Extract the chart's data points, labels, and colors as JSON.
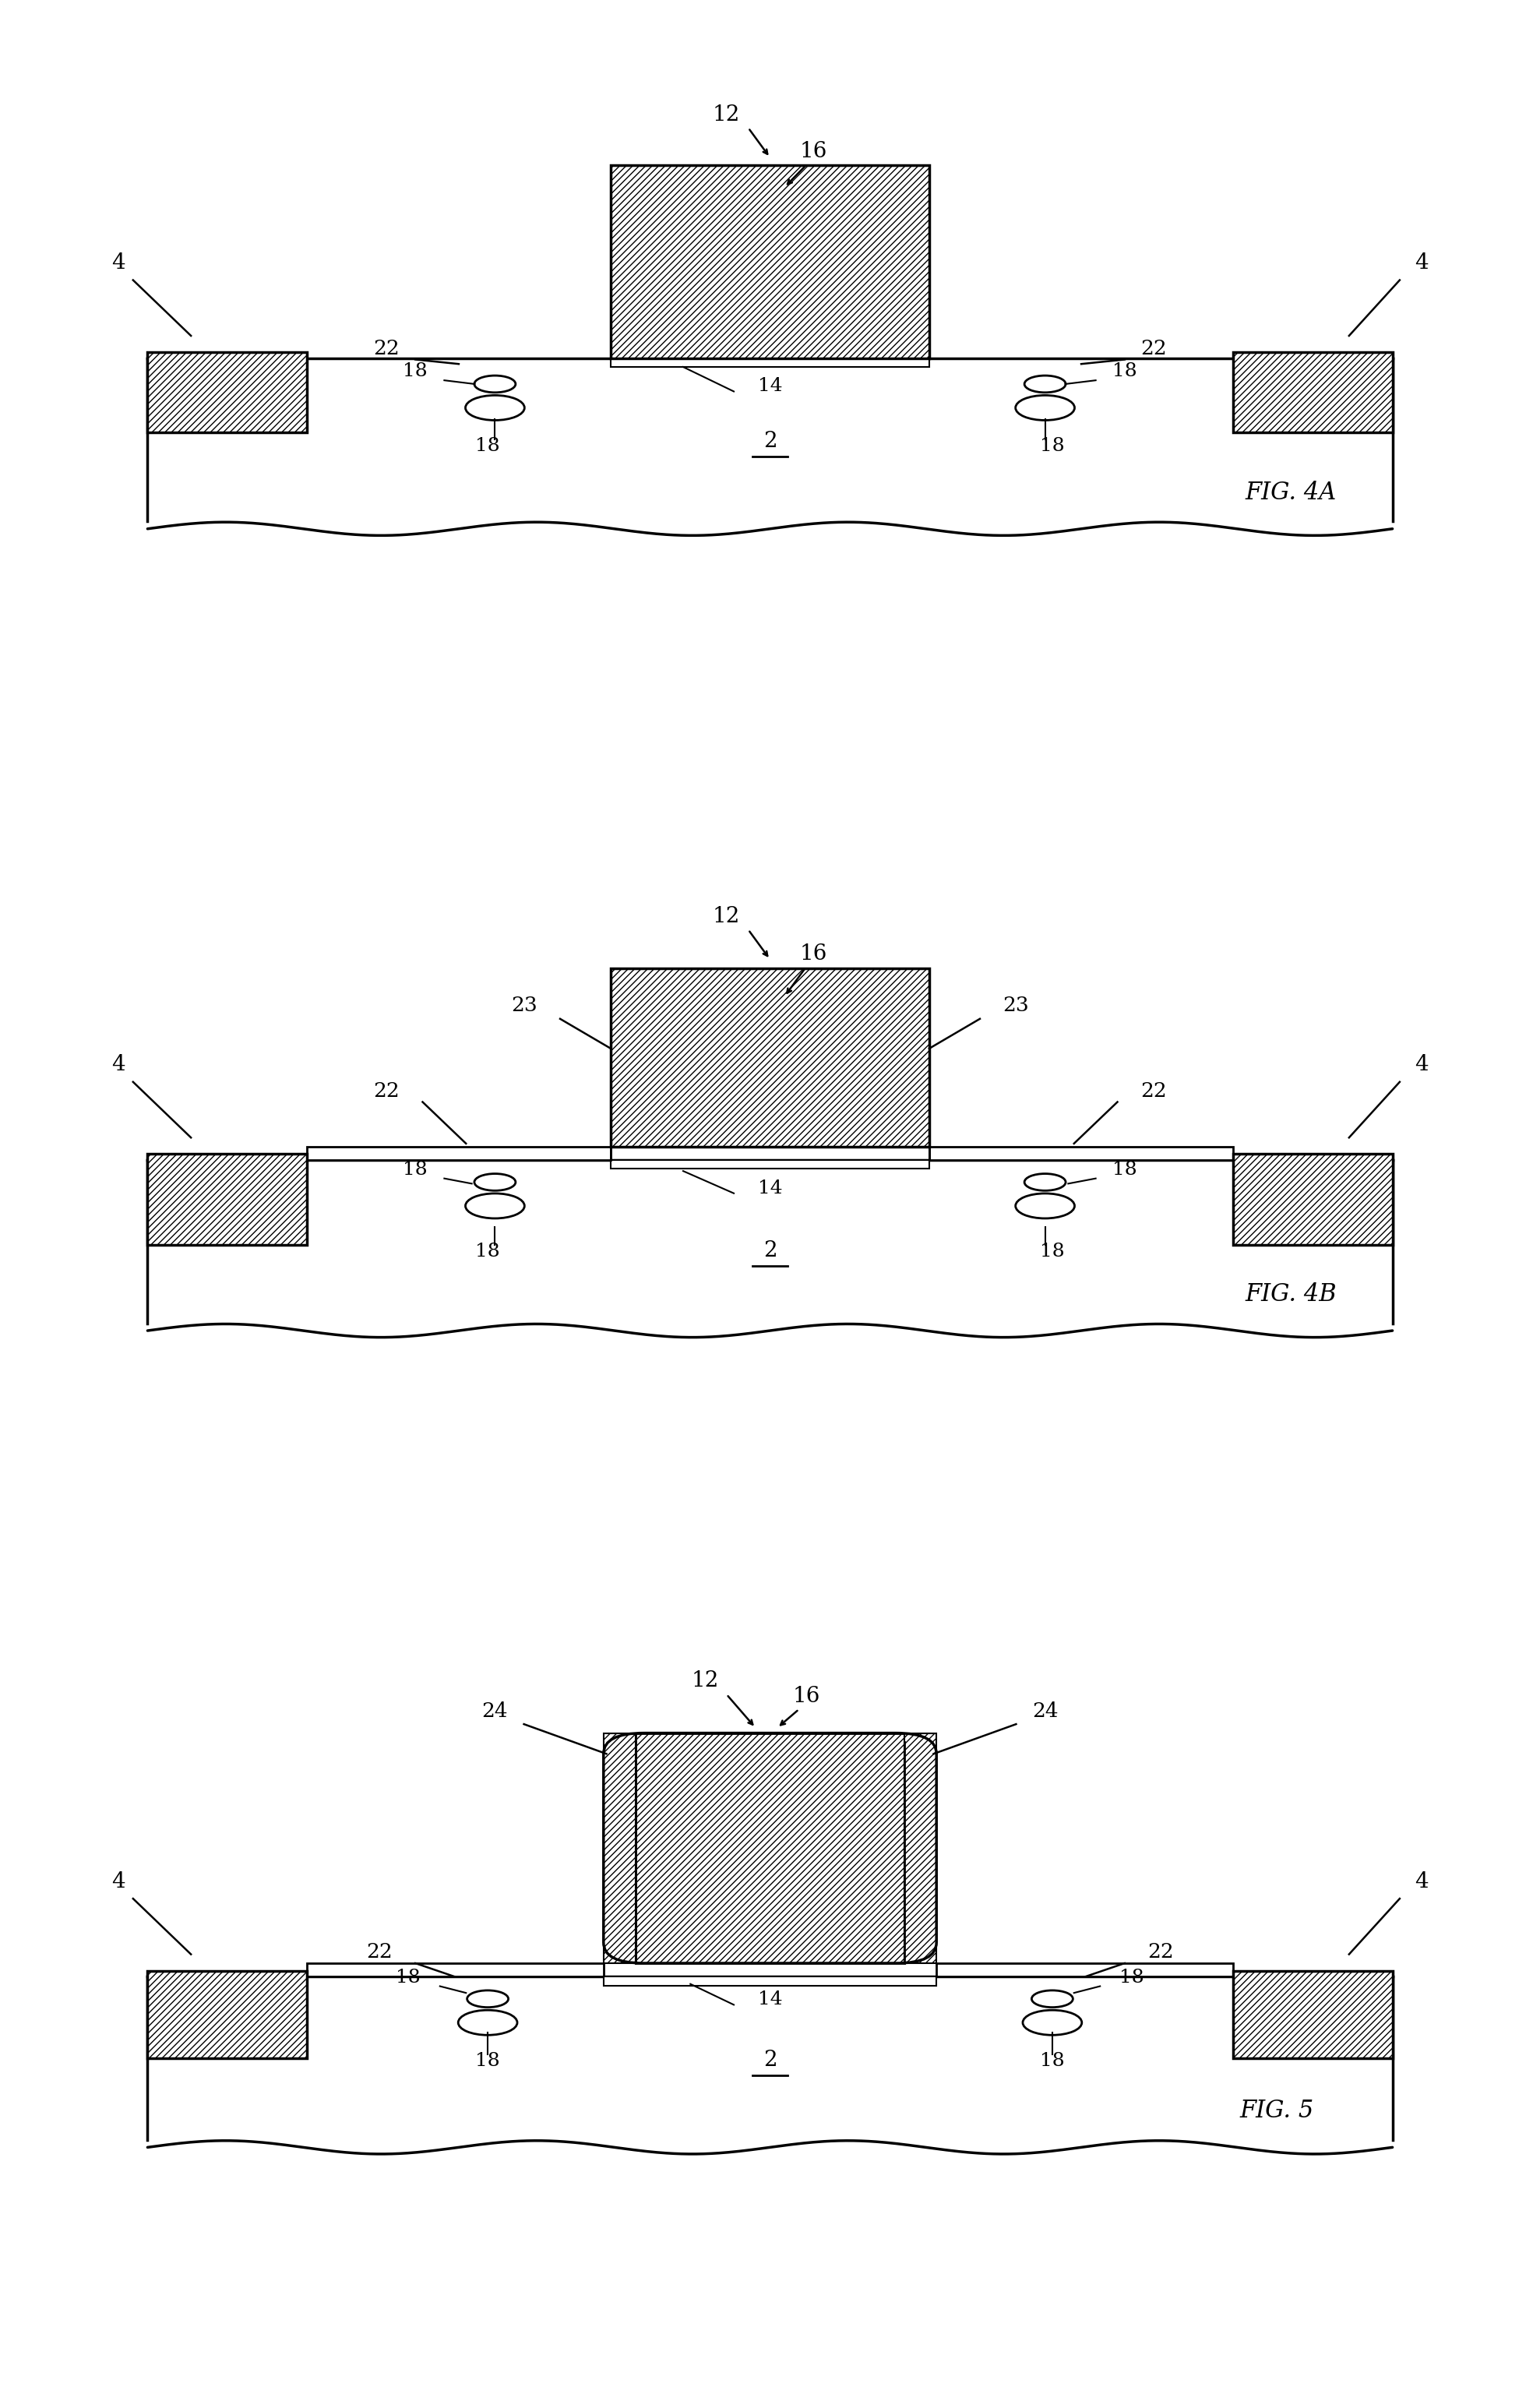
{
  "fig_width": 19.77,
  "fig_height": 30.73,
  "bg_color": "#ffffff",
  "line_color": "#000000",
  "panels": [
    {
      "label": "FIG. 4A",
      "type": "4A"
    },
    {
      "label": "FIG. 4B",
      "type": "4B"
    },
    {
      "label": "FIG. 5",
      "type": "5"
    }
  ]
}
